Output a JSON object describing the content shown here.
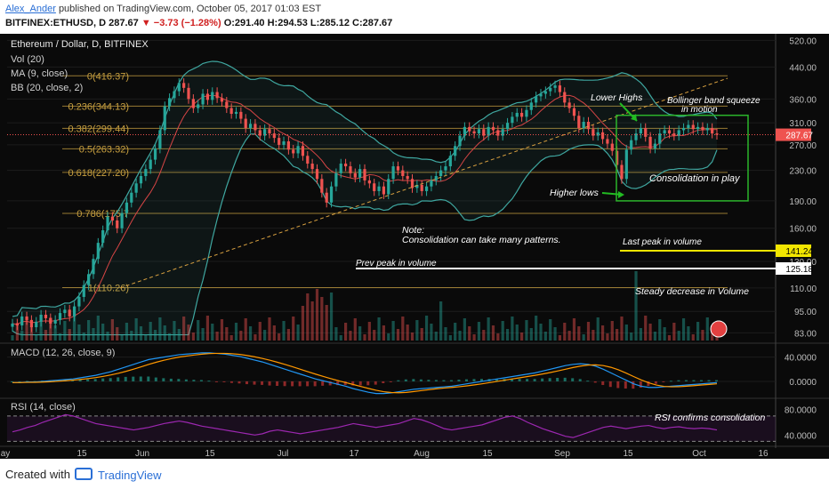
{
  "header": {
    "author": "Alex_Ander",
    "published": "published on TradingView.com, October 05, 2017 01:03 EST",
    "symbol": "BITFINEX:ETHUSD, D",
    "last": "287.67",
    "change": "▼ −3.73 (−1.28%)",
    "ohlc": "O:291.40 H:294.53 L:285.12 C:287.67"
  },
  "legend": {
    "title": "Ethereum / Dollar, D, BITFINEX",
    "vol": "Vol (20)",
    "ma": "MA (9, close)",
    "bb": "BB (20, close, 2)"
  },
  "footer": {
    "created": "Created with",
    "brand": "TradingView"
  },
  "colors": {
    "up": "#26a69a",
    "down": "#ef5350",
    "fib": "#c8a040",
    "bb": "#3fa7a0",
    "ma": "#d64545",
    "macd": "#2196f3",
    "signal": "#ff9800",
    "rsi": "#9c27b0",
    "box": "#2bb52b",
    "arrow": "#22bb22"
  },
  "chart_data": [
    {
      "type": "candlestick",
      "title": "Ethereum / Dollar, D, BITFINEX",
      "x_labels": [
        "ay",
        "15",
        "Jun",
        "15",
        "Jul",
        "17",
        "Aug",
        "15",
        "Sep",
        "15",
        "Oct",
        "16"
      ],
      "y_ticks": [
        "520.00",
        "440.00",
        "360.00",
        "310.00",
        "270.00",
        "230.00",
        "190.00",
        "160.00",
        "130.00",
        "110.00",
        "95.00",
        "83.00"
      ],
      "y_scale": "log",
      "ylim": [
        80,
        530
      ],
      "last_price": "287.67",
      "fib_levels": [
        {
          "label": "0(416.37)",
          "value": 416.37
        },
        {
          "label": "0.236(344.13)",
          "value": 344.13
        },
        {
          "label": "0.382(299.44)",
          "value": 299.44
        },
        {
          "label": "0.5(263.32)",
          "value": 263.32
        },
        {
          "label": "0.618(227.20)",
          "value": 227.2
        },
        {
          "label": "0.786(175.7",
          "value": 175.7
        },
        {
          "label": "1(110.26)",
          "value": 110.26
        }
      ],
      "close": [
        88,
        87,
        92,
        90,
        86,
        89,
        93,
        91,
        88,
        90,
        94,
        96,
        92,
        98,
        104,
        112,
        120,
        132,
        146,
        158,
        172,
        168,
        160,
        176,
        188,
        200,
        212,
        222,
        232,
        246,
        264,
        296,
        344,
        362,
        378,
        398,
        386,
        360,
        340,
        348,
        372,
        358,
        376,
        362,
        354,
        340,
        328,
        332,
        318,
        300,
        308,
        296,
        286,
        298,
        290,
        282,
        270,
        276,
        262,
        256,
        268,
        252,
        240,
        232,
        218,
        200,
        188,
        208,
        226,
        240,
        236,
        226,
        220,
        232,
        216,
        212,
        202,
        208,
        198,
        218,
        236,
        230,
        222,
        218,
        206,
        210,
        202,
        208,
        216,
        222,
        230,
        236,
        252,
        268,
        286,
        302,
        294,
        290,
        298,
        286,
        302,
        296,
        286,
        298,
        310,
        322,
        330,
        322,
        336,
        352,
        366,
        372,
        378,
        386,
        392,
        376,
        352,
        340,
        324,
        300,
        312,
        298,
        286,
        292,
        280,
        272,
        260,
        238,
        218,
        262,
        278,
        290,
        300,
        284,
        264,
        272,
        290,
        296,
        290,
        286,
        296,
        300,
        306,
        298,
        302,
        296,
        300,
        290,
        287.67
      ],
      "volume_labels": [
        {
          "label": "Last peak in volume",
          "value": "141.24"
        },
        {
          "label": "Prev peak in volume",
          "value": "125.18"
        }
      ],
      "annotations": [
        "Lower Highs",
        "Bollinger band squeeze in motion",
        "Consolidation in play",
        "Higher lows",
        "Note: Consolidation can take many patterns.",
        "Steady decrease in Volume"
      ]
    },
    {
      "type": "line",
      "title": "MACD (12, 26, close, 9)",
      "y_ticks": [
        "40.0000",
        "0.0000"
      ],
      "ylim": [
        -25,
        60
      ],
      "series": [
        {
          "name": "MACD",
          "values": [
            -2,
            -2,
            -1,
            -1,
            0,
            1,
            2,
            3,
            4,
            6,
            8,
            10,
            13,
            16,
            20,
            24,
            28,
            32,
            36,
            38,
            40,
            42,
            44,
            45,
            46,
            47,
            47,
            46,
            45,
            43,
            41,
            38,
            35,
            32,
            28,
            24,
            20,
            16,
            12,
            8,
            4,
            1,
            -2,
            -5,
            -8,
            -12,
            -15,
            -18,
            -20,
            -20,
            -19,
            -17,
            -15,
            -13,
            -12,
            -11,
            -10,
            -9,
            -8,
            -6,
            -4,
            -2,
            0,
            2,
            4,
            6,
            8,
            10,
            12,
            14,
            17,
            20,
            23,
            26,
            28,
            29,
            28,
            25,
            20,
            14,
            8,
            2,
            -4,
            -8,
            -10,
            -10,
            -9,
            -8,
            -7,
            -6,
            -5,
            -4,
            -3,
            -2
          ]
        }
      ]
    },
    {
      "type": "line",
      "title": "RSI (14, close)",
      "y_ticks": [
        "80.0000",
        "40.0000"
      ],
      "ylim": [
        25,
        95
      ],
      "series": [
        {
          "name": "RSI",
          "values": [
            45,
            48,
            52,
            55,
            60,
            64,
            68,
            72,
            70,
            66,
            62,
            58,
            56,
            54,
            52,
            50,
            48,
            50,
            52,
            55,
            58,
            60,
            62,
            60,
            57,
            54,
            52,
            50,
            48,
            46,
            44,
            42,
            40,
            42,
            46,
            48,
            46,
            44,
            42,
            44,
            46,
            48,
            50,
            52,
            55,
            58,
            56,
            54,
            52,
            54,
            56,
            58,
            62,
            66,
            64,
            60,
            55,
            50,
            48,
            50,
            52,
            54,
            56,
            60,
            64,
            68,
            70,
            66,
            60,
            55,
            50,
            46,
            42,
            38,
            36,
            40,
            44,
            48,
            52,
            54,
            52,
            50,
            52,
            54,
            55,
            52,
            50,
            52,
            53,
            51,
            50,
            51,
            50,
            48
          ]
        }
      ]
    }
  ]
}
